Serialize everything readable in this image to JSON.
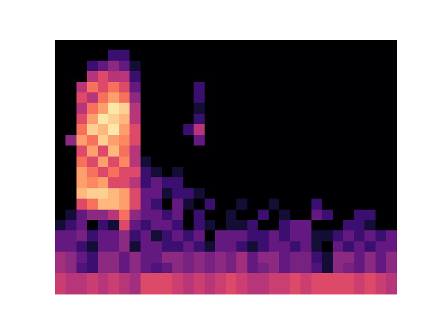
{
  "chart_data": {
    "type": "heatmap",
    "color": "magma",
    "tick_labels": false,
    "clim": [
      0,
      1
    ],
    "cells": [
      [
        0,
        0,
        0,
        0,
        0,
        0,
        0,
        0,
        0,
        0,
        0,
        0,
        0,
        0,
        0,
        0,
        0,
        0,
        0,
        0,
        0,
        0,
        0,
        0,
        0,
        0,
        0,
        0,
        0,
        0,
        0,
        0
      ],
      [
        0,
        0,
        0,
        0,
        0,
        0.2,
        0.2,
        0,
        0,
        0,
        0,
        0,
        0,
        0,
        0,
        0,
        0,
        0,
        0,
        0,
        0,
        0,
        0,
        0,
        0,
        0,
        0,
        0,
        0,
        0,
        0,
        0
      ],
      [
        0,
        0,
        0,
        0.2,
        0.3,
        0.4,
        0.3,
        0.1,
        0,
        0,
        0,
        0,
        0,
        0,
        0,
        0,
        0,
        0,
        0,
        0,
        0,
        0,
        0,
        0,
        0,
        0,
        0,
        0,
        0,
        0,
        0,
        0
      ],
      [
        0,
        0,
        0,
        0.5,
        0.6,
        0.5,
        0.5,
        0.2,
        0,
        0,
        0,
        0,
        0,
        0,
        0,
        0,
        0,
        0,
        0,
        0,
        0,
        0,
        0,
        0,
        0,
        0,
        0,
        0,
        0,
        0,
        0,
        0
      ],
      [
        0,
        0,
        0.5,
        0.7,
        0.6,
        0.7,
        0.6,
        0.3,
        0,
        0,
        0,
        0,
        0,
        0.2,
        0,
        0,
        0,
        0,
        0,
        0,
        0,
        0,
        0,
        0,
        0,
        0,
        0,
        0,
        0,
        0,
        0,
        0
      ],
      [
        0,
        0,
        0.6,
        0.5,
        0.7,
        0.8,
        0.7,
        0.4,
        0,
        0,
        0,
        0,
        0,
        0.2,
        0,
        0,
        0,
        0,
        0,
        0,
        0,
        0,
        0,
        0,
        0,
        0,
        0,
        0,
        0,
        0,
        0,
        0
      ],
      [
        0,
        0,
        0.5,
        0.7,
        0.8,
        0.95,
        0.9,
        0.5,
        0,
        0,
        0,
        0,
        0,
        0.1,
        0,
        0,
        0,
        0,
        0,
        0,
        0,
        0,
        0,
        0,
        0,
        0,
        0,
        0,
        0,
        0,
        0,
        0
      ],
      [
        0,
        0,
        0.6,
        0.8,
        0.95,
        0.9,
        0.85,
        0.5,
        0,
        0,
        0,
        0,
        0,
        0.2,
        0,
        0,
        0,
        0,
        0,
        0,
        0,
        0,
        0,
        0,
        0,
        0,
        0,
        0,
        0,
        0,
        0,
        0
      ],
      [
        0,
        0,
        0.7,
        0.9,
        0.85,
        0.95,
        0.8,
        0.6,
        0,
        0,
        0,
        0,
        0.2,
        0.5,
        0,
        0,
        0,
        0,
        0,
        0,
        0,
        0,
        0,
        0,
        0,
        0,
        0,
        0,
        0,
        0,
        0,
        0
      ],
      [
        0,
        0.4,
        0.8,
        0.7,
        0.9,
        0.8,
        0.75,
        0.6,
        0,
        0,
        0,
        0,
        0,
        0.3,
        0,
        0,
        0,
        0,
        0,
        0,
        0,
        0,
        0,
        0,
        0,
        0,
        0,
        0,
        0,
        0,
        0,
        0
      ],
      [
        0,
        0,
        0.6,
        0.8,
        0.6,
        0.85,
        0.7,
        0.5,
        0,
        0,
        0,
        0,
        0,
        0,
        0,
        0,
        0,
        0,
        0,
        0,
        0,
        0,
        0,
        0,
        0,
        0,
        0,
        0,
        0,
        0,
        0,
        0
      ],
      [
        0,
        0,
        0.7,
        0.6,
        0.8,
        0.6,
        0.75,
        0.5,
        0.1,
        0,
        0,
        0,
        0,
        0,
        0,
        0,
        0,
        0,
        0,
        0,
        0,
        0,
        0,
        0,
        0,
        0,
        0,
        0,
        0,
        0,
        0,
        0
      ],
      [
        0,
        0,
        0.8,
        0.7,
        0.6,
        0.7,
        0.6,
        0.6,
        0.2,
        0.1,
        0,
        0.1,
        0,
        0,
        0,
        0,
        0,
        0,
        0,
        0,
        0,
        0,
        0,
        0,
        0,
        0,
        0,
        0,
        0,
        0,
        0,
        0
      ],
      [
        0,
        0,
        0.8,
        0.75,
        0.8,
        0.6,
        0.6,
        0.5,
        0.2,
        0.3,
        0.2,
        0.2,
        0,
        0,
        0,
        0,
        0,
        0,
        0,
        0,
        0,
        0,
        0,
        0,
        0,
        0,
        0,
        0,
        0,
        0,
        0,
        0
      ],
      [
        0,
        0,
        0.85,
        0.9,
        0.9,
        0.85,
        0.8,
        0.6,
        0.3,
        0.3,
        0.1,
        0.2,
        0.2,
        0.1,
        0,
        0,
        0,
        0,
        0,
        0,
        0,
        0,
        0,
        0,
        0,
        0,
        0,
        0,
        0,
        0,
        0,
        0
      ],
      [
        0,
        0,
        0.6,
        0.7,
        0.85,
        0.85,
        0.8,
        0.6,
        0.3,
        0.2,
        0,
        0.3,
        0.1,
        0,
        0.2,
        0,
        0,
        0.1,
        0,
        0,
        0.1,
        0,
        0,
        0,
        0.2,
        0,
        0,
        0,
        0,
        0,
        0,
        0
      ],
      [
        0,
        0.1,
        0.3,
        0.4,
        0.4,
        0.5,
        0.7,
        0.4,
        0.3,
        0.3,
        0.2,
        0.3,
        0,
        0.2,
        0,
        0,
        0.1,
        0,
        0,
        0.2,
        0,
        0.1,
        0,
        0,
        0.3,
        0.2,
        0,
        0,
        0.2,
        0.2,
        0,
        0
      ],
      [
        0.1,
        0.2,
        0.3,
        0,
        0.2,
        0.1,
        0.6,
        0.3,
        0.2,
        0.3,
        0.3,
        0.2,
        0,
        0.2,
        0.1,
        0,
        0.1,
        0.1,
        0.2,
        0,
        0,
        0.2,
        0.3,
        0.3,
        0,
        0,
        0,
        0.2,
        0.2,
        0.1,
        0,
        0
      ],
      [
        0.3,
        0.3,
        0.35,
        0.2,
        0.3,
        0.3,
        0.4,
        0.2,
        0.3,
        0.1,
        0.2,
        0.3,
        0.2,
        0.3,
        0,
        0.3,
        0.3,
        0.3,
        0.2,
        0.2,
        0.3,
        0.2,
        0.3,
        0.3,
        0.1,
        0.1,
        0.2,
        0.3,
        0.2,
        0.3,
        0.2,
        0.3
      ],
      [
        0.3,
        0.3,
        0.2,
        0.1,
        0.3,
        0.3,
        0.4,
        0.1,
        0.3,
        0.3,
        0.2,
        0.2,
        0.3,
        0.2,
        0.1,
        0.3,
        0.3,
        0.2,
        0.1,
        0.2,
        0.3,
        0.3,
        0.2,
        0.3,
        0.1,
        0,
        0.3,
        0.2,
        0.3,
        0.2,
        0.3,
        0.3
      ],
      [
        0.45,
        0.4,
        0.3,
        0.2,
        0.4,
        0.4,
        0.3,
        0.4,
        0.3,
        0.3,
        0.4,
        0.4,
        0.35,
        0.4,
        0.35,
        0.4,
        0.35,
        0.45,
        0.3,
        0.4,
        0.4,
        0.3,
        0.35,
        0.35,
        0.2,
        0.1,
        0.4,
        0.4,
        0.3,
        0.4,
        0.3,
        0.4
      ],
      [
        0.45,
        0.4,
        0.25,
        0.2,
        0.4,
        0.4,
        0.3,
        0.4,
        0.3,
        0.25,
        0.3,
        0.4,
        0.35,
        0.4,
        0.35,
        0.4,
        0.35,
        0.45,
        0.3,
        0.35,
        0.4,
        0.3,
        0.35,
        0.35,
        0.25,
        0.1,
        0.4,
        0.35,
        0.3,
        0.4,
        0.3,
        0.4
      ],
      [
        0.55,
        0.5,
        0.5,
        0.55,
        0.5,
        0.55,
        0.5,
        0.45,
        0.6,
        0.6,
        0.6,
        0.55,
        0.5,
        0.55,
        0.5,
        0.55,
        0.6,
        0.55,
        0.5,
        0.5,
        0.55,
        0.55,
        0.6,
        0.55,
        0.6,
        0.6,
        0.6,
        0.6,
        0.55,
        0.6,
        0.55,
        0.5
      ],
      [
        0.55,
        0.5,
        0.5,
        0.55,
        0.5,
        0.55,
        0.5,
        0.45,
        0.6,
        0.6,
        0.6,
        0.55,
        0.5,
        0.55,
        0.5,
        0.55,
        0.6,
        0.55,
        0.5,
        0.5,
        0.55,
        0.55,
        0.6,
        0.55,
        0.6,
        0.6,
        0.6,
        0.6,
        0.55,
        0.6,
        0.55,
        0.5
      ]
    ]
  }
}
